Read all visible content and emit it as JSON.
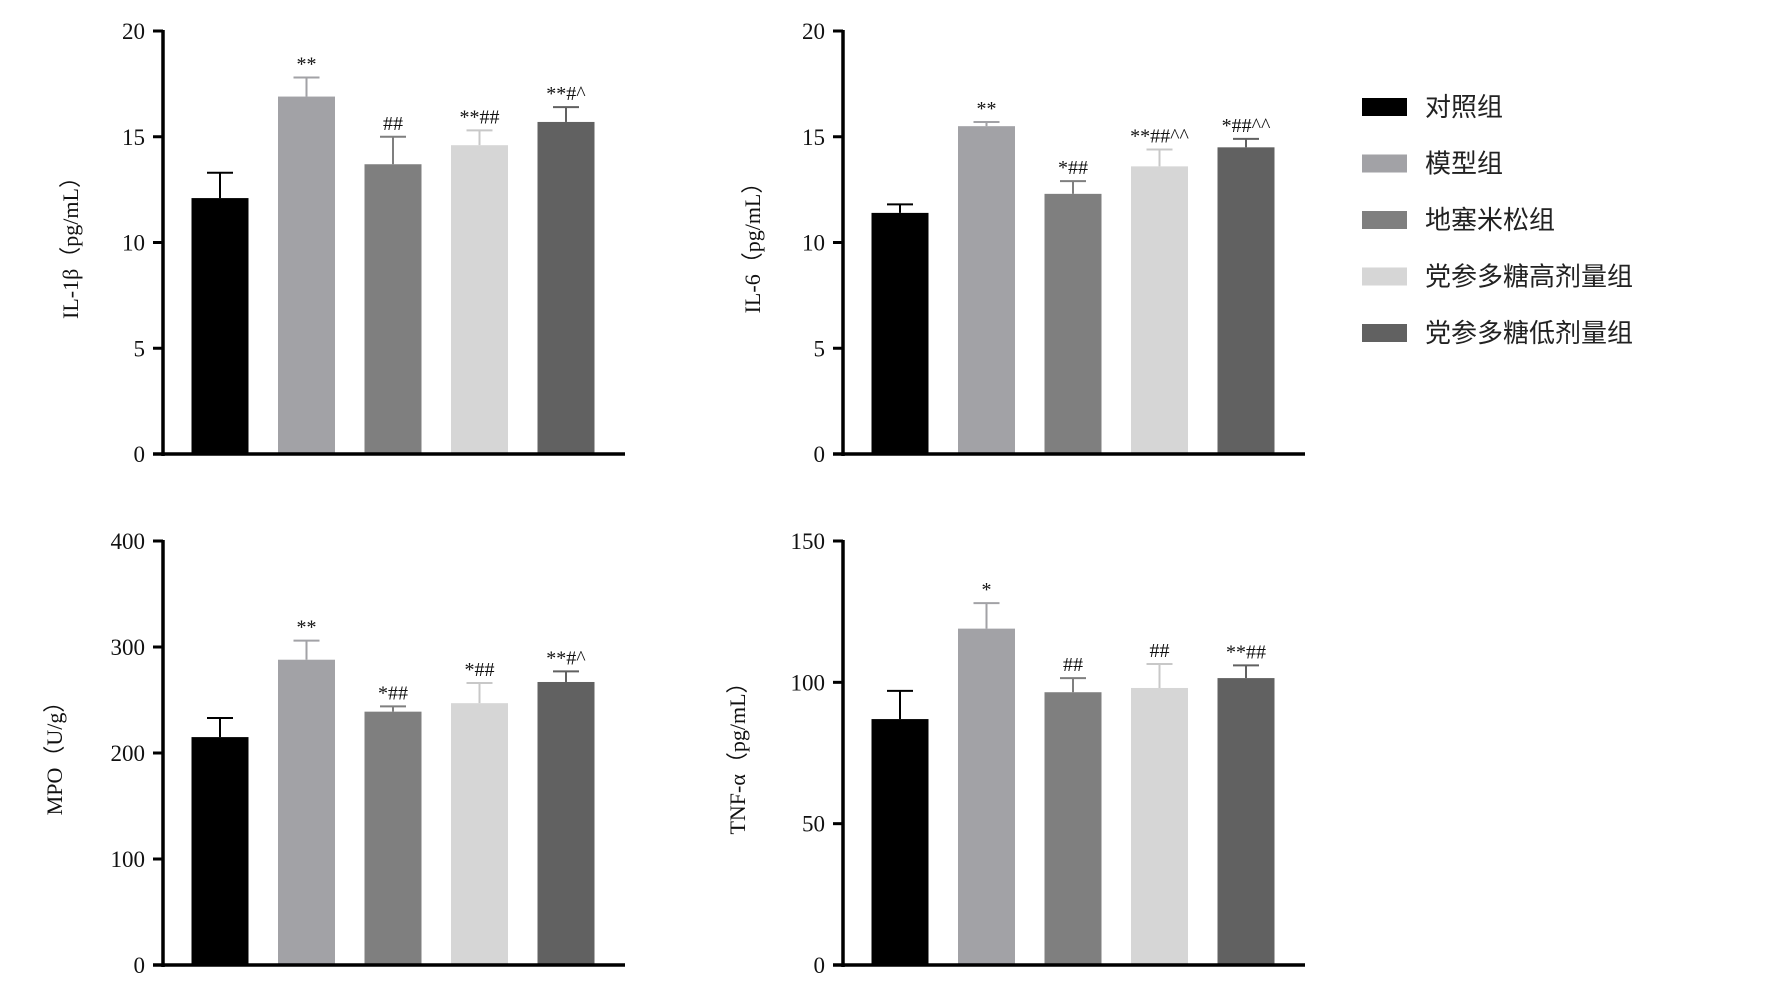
{
  "chart_data": {
    "type": "bar",
    "legend": {
      "placement": "right",
      "entries": [
        {
          "label": "对照组",
          "color": "#000000"
        },
        {
          "label": "模型组",
          "color": "#a2a2a6"
        },
        {
          "label": "地塞米松组",
          "color": "#7f7f7f"
        },
        {
          "label": "党参多糖高剂量组",
          "color": "#d6d6d6"
        },
        {
          "label": "党参多糖低剂量组",
          "color": "#616161"
        }
      ]
    },
    "panels": [
      {
        "ylabel": "IL-1β（pg/mL）",
        "ylim": [
          0,
          20
        ],
        "yticks": [
          0,
          5,
          10,
          15,
          20
        ],
        "values": [
          12.1,
          16.9,
          13.7,
          14.6,
          15.7
        ],
        "errors": [
          1.2,
          0.9,
          1.3,
          0.7,
          0.7
        ],
        "annotations": [
          "",
          "**",
          "##",
          "**##",
          "**#^"
        ]
      },
      {
        "ylabel": "IL-6（pg/mL）",
        "ylim": [
          0,
          20
        ],
        "yticks": [
          0,
          5,
          10,
          15,
          20
        ],
        "values": [
          11.4,
          15.5,
          12.3,
          13.6,
          14.5
        ],
        "errors": [
          0.4,
          0.2,
          0.6,
          0.8,
          0.4
        ],
        "annotations": [
          "",
          "**",
          "*##",
          "**##^^",
          "*##^^"
        ]
      },
      {
        "ylabel": "MPO（U/g）",
        "ylim": [
          0,
          400
        ],
        "yticks": [
          0,
          100,
          200,
          300,
          400
        ],
        "values": [
          215,
          288,
          239,
          247,
          267
        ],
        "errors": [
          18,
          18,
          5,
          19,
          10
        ],
        "annotations": [
          "",
          "**",
          "*##",
          "*##",
          "**#^"
        ]
      },
      {
        "ylabel": "TNF-α（pg/mL）",
        "ylim": [
          0,
          150
        ],
        "yticks": [
          0,
          50,
          100,
          150
        ],
        "values": [
          87,
          119,
          96.5,
          98,
          101.5
        ],
        "errors": [
          10,
          9,
          5,
          8.5,
          4.5
        ],
        "annotations": [
          "",
          "*",
          "##",
          "##",
          "**##"
        ]
      }
    ]
  }
}
